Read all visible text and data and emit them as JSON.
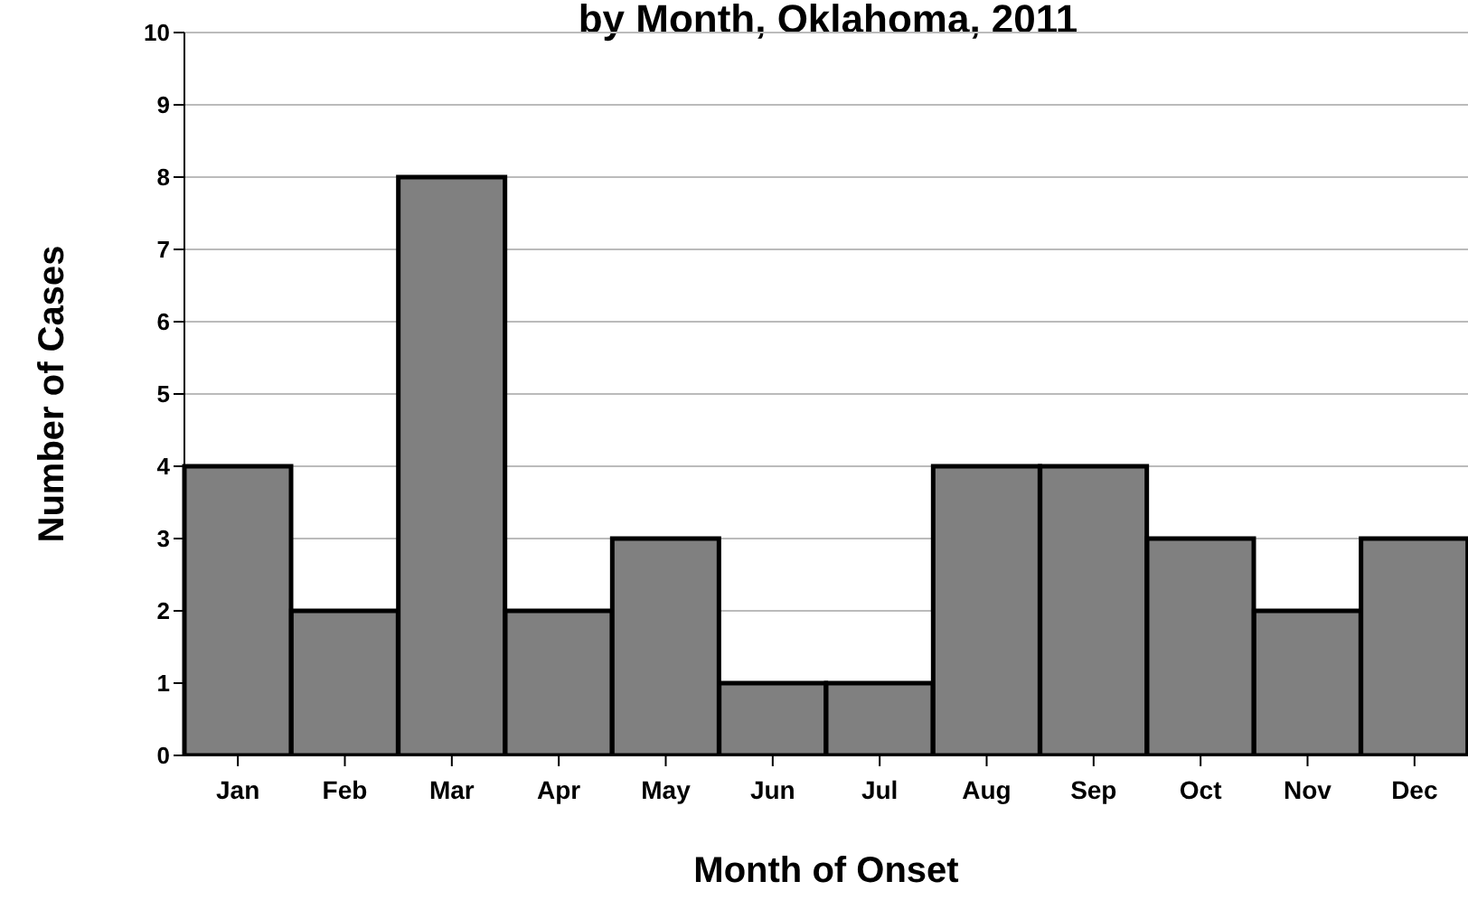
{
  "chart_data": {
    "type": "bar",
    "title": "by Month, Oklahoma, 2011",
    "xlabel": "Month of Onset",
    "ylabel": "Number of Cases",
    "categories": [
      "Jan",
      "Feb",
      "Mar",
      "Apr",
      "May",
      "Jun",
      "Jul",
      "Aug",
      "Sep",
      "Oct",
      "Nov",
      "Dec"
    ],
    "values": [
      4,
      2,
      8,
      2,
      3,
      1,
      1,
      4,
      4,
      3,
      2,
      3
    ],
    "color": "#808080",
    "ylim": [
      0,
      10
    ],
    "yticks": [
      0,
      1,
      2,
      3,
      4,
      5,
      6,
      7,
      8,
      9,
      10
    ],
    "grid": "y"
  }
}
